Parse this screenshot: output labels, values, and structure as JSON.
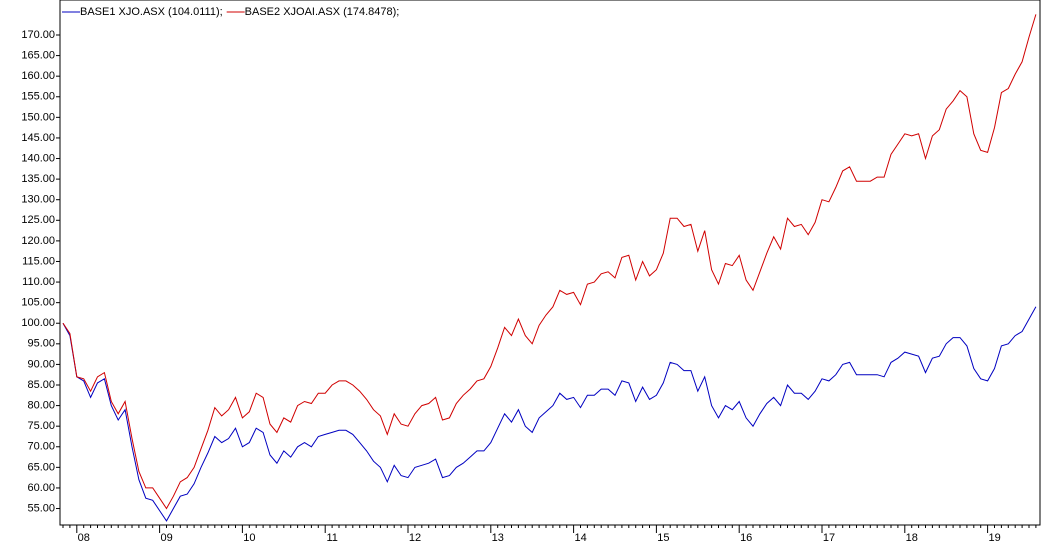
{
  "chart_data": {
    "type": "line",
    "categories": [
      null,
      null,
      "08",
      null,
      null,
      null,
      null,
      null,
      null,
      null,
      null,
      null,
      null,
      null,
      "09",
      null,
      null,
      null,
      null,
      null,
      null,
      null,
      null,
      null,
      null,
      null,
      "10",
      null,
      null,
      null,
      null,
      null,
      null,
      null,
      null,
      null,
      null,
      null,
      "11",
      null,
      null,
      null,
      null,
      null,
      null,
      null,
      null,
      null,
      null,
      null,
      "12",
      null,
      null,
      null,
      null,
      null,
      null,
      null,
      null,
      null,
      null,
      null,
      "13",
      null,
      null,
      null,
      null,
      null,
      null,
      null,
      null,
      null,
      null,
      null,
      "14",
      null,
      null,
      null,
      null,
      null,
      null,
      null,
      null,
      null,
      null,
      null,
      "15",
      null,
      null,
      null,
      null,
      null,
      null,
      null,
      null,
      null,
      null,
      null,
      "16",
      null,
      null,
      null,
      null,
      null,
      null,
      null,
      null,
      null,
      null,
      null,
      "17",
      null,
      null,
      null,
      null,
      null,
      null,
      null,
      null,
      null,
      null,
      null,
      "18",
      null,
      null,
      null,
      null,
      null,
      null,
      null,
      null,
      null,
      null,
      null,
      "19",
      null,
      null,
      null,
      null,
      null,
      null,
      null
    ],
    "series": [
      {
        "name": "BASE1 XJO.ASX (104.0111);",
        "color": "#0000c0",
        "values": [
          100,
          97,
          87,
          86,
          82,
          85.5,
          86.5,
          80,
          76.5,
          79,
          70,
          62,
          57.5,
          57,
          54.5,
          52,
          55,
          58,
          58.5,
          61,
          65,
          68.5,
          72.5,
          71,
          72,
          74.5,
          70,
          71,
          74.5,
          73.5,
          68,
          66,
          69,
          67.5,
          70,
          71,
          70,
          72.5,
          73,
          73.5,
          74,
          74,
          73,
          71,
          69,
          66.5,
          65,
          61.5,
          65.5,
          63,
          62.5,
          65,
          65.5,
          66,
          67,
          62.5,
          63,
          65,
          66,
          67.5,
          69,
          69,
          71,
          74.5,
          78,
          76,
          79,
          75,
          73.5,
          77,
          78.5,
          80,
          83,
          81.5,
          82,
          79.5,
          82.5,
          82.5,
          84,
          84,
          82.5,
          86,
          85.5,
          81,
          84.5,
          81.5,
          82.5,
          85.5,
          90.5,
          90,
          88.5,
          88.5,
          83.5,
          87,
          80,
          77,
          80,
          79,
          81,
          77,
          75,
          78,
          80.5,
          82,
          80,
          85,
          83,
          83,
          81.5,
          83.5,
          86.5,
          86,
          87.5,
          90,
          90.5,
          87.5,
          87.5,
          87.5,
          87.5,
          87,
          90.5,
          91.5,
          93,
          92.5,
          92,
          88,
          91.5,
          92,
          95,
          96.5,
          96.5,
          94.5,
          89,
          86.5,
          86,
          89,
          94.5,
          95,
          97,
          98,
          101,
          104
        ]
      },
      {
        "name": "BASE2 XJOAI.ASX (174.8478);",
        "color": "#d00000",
        "values": [
          100,
          97.5,
          87,
          86.5,
          83.5,
          87,
          88,
          81,
          78,
          81,
          72,
          64,
          60,
          60,
          57.5,
          55,
          58,
          61.5,
          62.5,
          65,
          69.5,
          74,
          79.5,
          77.5,
          79,
          82,
          77,
          78.5,
          83,
          82,
          75.5,
          73.5,
          77,
          76,
          80,
          81,
          80.5,
          83,
          83,
          85,
          86,
          86,
          85,
          83.5,
          81.5,
          79,
          77.5,
          73,
          78,
          75.5,
          75,
          78,
          80,
          80.5,
          82,
          76.5,
          77,
          80.5,
          82.5,
          84,
          86,
          86.5,
          89.5,
          94,
          99,
          97,
          101,
          97,
          95,
          99.5,
          102,
          104,
          108,
          107,
          107.5,
          104.5,
          109.5,
          110,
          112,
          112.5,
          111,
          116,
          116.5,
          110.5,
          115,
          111.5,
          113,
          117,
          125.5,
          125.5,
          123.5,
          124,
          117.5,
          122.5,
          113,
          109.5,
          114.5,
          114,
          116.5,
          110.5,
          108,
          112.5,
          117,
          121,
          118,
          125.5,
          123.5,
          124,
          121.5,
          124.5,
          130,
          129.5,
          133,
          137,
          138,
          134.5,
          134.5,
          134.5,
          135.5,
          135.5,
          141,
          143.5,
          146,
          145.5,
          146,
          140,
          145.5,
          147,
          152,
          154,
          156.5,
          155,
          146,
          142,
          141.5,
          147.5,
          156,
          157,
          160.5,
          163.5,
          169.5,
          175
        ]
      }
    ],
    "ylim": [
      51,
      178.5
    ],
    "yticks": [
      {
        "value": 55,
        "label": "55.00"
      },
      {
        "value": 60,
        "label": "60.00"
      },
      {
        "value": 65,
        "label": "65.00"
      },
      {
        "value": 70,
        "label": "70.00"
      },
      {
        "value": 75,
        "label": "75.00"
      },
      {
        "value": 80,
        "label": "80.00"
      },
      {
        "value": 85,
        "label": "85.00"
      },
      {
        "value": 90,
        "label": "90.00"
      },
      {
        "value": 95,
        "label": "95.00"
      },
      {
        "value": 100,
        "label": "100.00"
      },
      {
        "value": 105,
        "label": "105.00"
      },
      {
        "value": 110,
        "label": "110.00"
      },
      {
        "value": 115,
        "label": "115.00"
      },
      {
        "value": 120,
        "label": "120.00"
      },
      {
        "value": 125,
        "label": "125.00"
      },
      {
        "value": 130,
        "label": "130.00"
      },
      {
        "value": 135,
        "label": "135.00"
      },
      {
        "value": 140,
        "label": "140.00"
      },
      {
        "value": 145,
        "label": "145.00"
      },
      {
        "value": 150,
        "label": "150.00"
      },
      {
        "value": 155,
        "label": "155.00"
      },
      {
        "value": 160,
        "label": "160.00"
      },
      {
        "value": 165,
        "label": "165.00"
      },
      {
        "value": 170,
        "label": "170.00"
      }
    ],
    "grid": false
  }
}
